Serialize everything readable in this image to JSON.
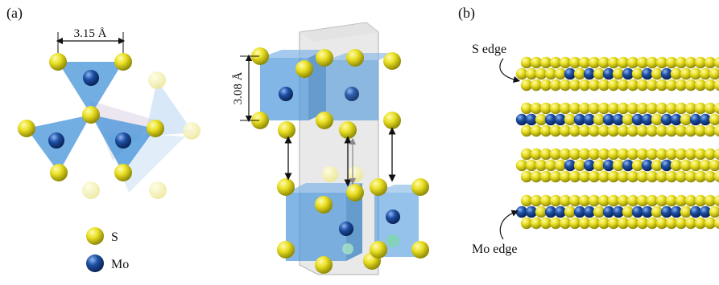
{
  "panel_a": {
    "label": "(a)",
    "lattice_dimension": "3.15 Å",
    "layer_height": "3.08 Å",
    "legend": [
      {
        "symbol": "S",
        "color": "#e6dc1a"
      },
      {
        "symbol": "Mo",
        "color": "#1d4fa3"
      }
    ]
  },
  "panel_b": {
    "label": "(b)",
    "annotations": {
      "top": "S edge",
      "bottom": "Mo edge"
    }
  },
  "colors": {
    "sulfur": "#e6dc1a",
    "molybdenum": "#1d4fa3",
    "prism_blue": "#3d8fd8",
    "prism_light": "#a9cdef",
    "cell_gray": "#c8c8c8"
  }
}
